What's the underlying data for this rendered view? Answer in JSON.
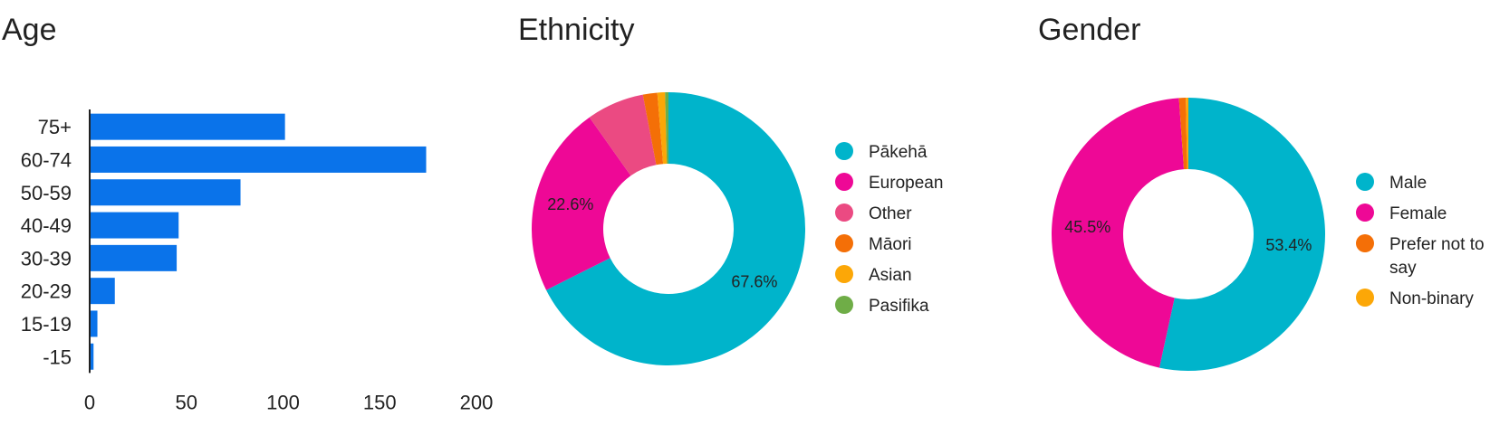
{
  "chart_data": [
    {
      "type": "bar",
      "orientation": "horizontal",
      "title": "Age",
      "categories": [
        "75+",
        "60-74",
        "50-59",
        "40-49",
        "30-39",
        "20-29",
        "15-19",
        "-15"
      ],
      "values": [
        101,
        174,
        78,
        46,
        45,
        13,
        4,
        2
      ],
      "xlim": [
        0,
        200
      ],
      "xticks": [
        "0",
        "50",
        "100",
        "150",
        "200"
      ],
      "grid": false,
      "colors": {
        "bar": "#0a73ea"
      }
    },
    {
      "type": "pie",
      "donut": true,
      "title": "Ethnicity",
      "legend_position": "right",
      "slices": [
        {
          "name": "Pākehā",
          "value": 67.6,
          "label": "67.6%",
          "color": "#00b4cb"
        },
        {
          "name": "European",
          "value": 22.6,
          "label": "22.6%",
          "color": "#ee0896"
        },
        {
          "name": "Other",
          "value": 6.8,
          "label": "",
          "color": "#eb4a82"
        },
        {
          "name": "Māori",
          "value": 1.7,
          "label": "",
          "color": "#f46f07"
        },
        {
          "name": "Asian",
          "value": 0.9,
          "label": "",
          "color": "#fca707"
        },
        {
          "name": "Pasifika",
          "value": 0.4,
          "label": "",
          "color": "#6fad47"
        }
      ]
    },
    {
      "type": "pie",
      "donut": true,
      "title": "Gender",
      "legend_position": "right",
      "slices": [
        {
          "name": "Male",
          "value": 53.4,
          "label": "53.4%",
          "color": "#00b4cb"
        },
        {
          "name": "Female",
          "value": 45.5,
          "label": "45.5%",
          "color": "#ee0896"
        },
        {
          "name": "Prefer not to say",
          "legend_lines": [
            "Prefer not to",
            "say"
          ],
          "value": 0.8,
          "label": "",
          "color": "#f46f07"
        },
        {
          "name": "Non-binary",
          "value": 0.3,
          "label": "",
          "color": "#fca707"
        }
      ]
    }
  ]
}
